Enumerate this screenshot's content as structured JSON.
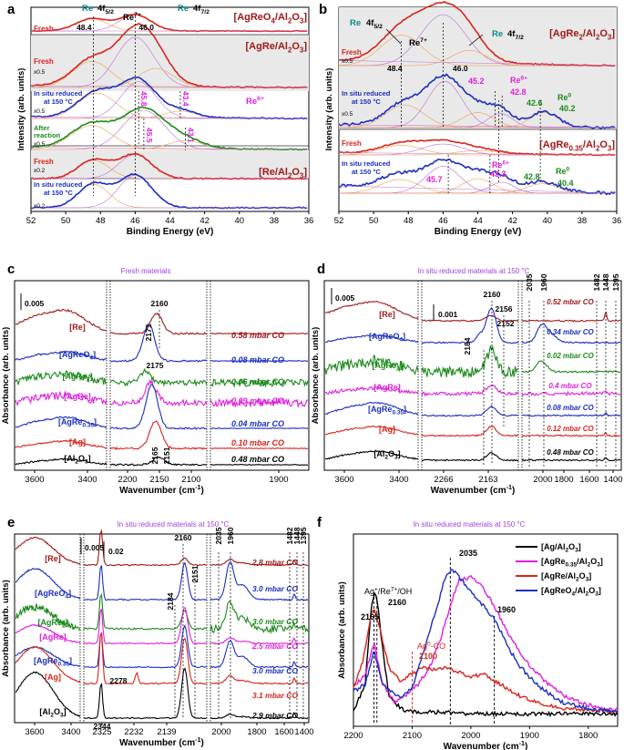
{
  "colors": {
    "red": "#d8241c",
    "darkred": "#a01818",
    "blue": "#1a2fc0",
    "green": "#1a8a1a",
    "magenta": "#e01ee0",
    "black": "#000000",
    "orange": "#f0a050",
    "purple": "#c070d0",
    "band": "#e9e9e9",
    "cyan": "#0a8a8a",
    "violet": "#a040e0"
  },
  "panel_labels": [
    "a",
    "b",
    "c",
    "d",
    "e",
    "f"
  ],
  "chart_data": [
    {
      "id": "a",
      "type": "line",
      "xlabel": "Binding Energy (eV)",
      "ylabel": "Intensity (arb. units)",
      "xlim": [
        52,
        36
      ],
      "xticks": [
        52,
        50,
        48,
        46,
        44,
        42,
        40,
        38,
        36
      ],
      "titles": [
        "[AgReO4/Al2O3]",
        "[AgRe/Al2O3]",
        "[Re/Al2O3]"
      ],
      "header": {
        "re": "Re",
        "f52": "4f5/2",
        "f72": "4f7/2",
        "re7": "Re7+",
        "v48": "48.4",
        "v46": "46.0"
      },
      "series": [
        {
          "name": "Fresh AgReO4",
          "label": "Fresh",
          "scale": "",
          "color": "red",
          "peaks": [
            48.4,
            46.0
          ],
          "values": [
            48.4,
            46.0
          ]
        },
        {
          "name": "Fresh AgRe",
          "label": "Fresh",
          "scale": "x0.5",
          "color": "red",
          "peaks": [
            48.4,
            46.0
          ],
          "values": [
            48.4,
            46.0
          ]
        },
        {
          "name": "In situ reduced AgRe",
          "label": "In situ reduced at 150 °C",
          "scale": "x0.5",
          "color": "blue",
          "peaks": [
            48.4,
            45.8,
            43.4
          ],
          "values": [
            45.8,
            43.4
          ]
        },
        {
          "name": "After reaction AgRe",
          "label": "After reaction",
          "scale": "x0.5",
          "color": "green",
          "peaks": [
            48.4,
            45.5,
            43.1
          ],
          "values": [
            45.5,
            43.1
          ]
        },
        {
          "name": "Fresh Re",
          "label": "Fresh",
          "scale": "x0.2",
          "color": "red",
          "peaks": [
            48.4,
            46.0
          ],
          "values": [
            48.4,
            46.0
          ]
        },
        {
          "name": "In situ reduced Re",
          "label": "In situ reduced at 150 °C",
          "scale": "x0.2",
          "color": "blue",
          "peaks": [
            48.4,
            46.0
          ],
          "values": [
            48.4,
            46.0
          ]
        }
      ],
      "annotations": {
        "re6": "Re6+"
      }
    },
    {
      "id": "b",
      "type": "line",
      "xlabel": "Binding Energy (eV)",
      "ylabel": "Intensity (arb. units)",
      "xlim": [
        52,
        36
      ],
      "xticks": [
        52,
        50,
        48,
        46,
        44,
        42,
        40,
        38,
        36
      ],
      "titles": [
        "[AgRe2/Al2O3]",
        "[AgRe0.35/Al2O3]"
      ],
      "header": {
        "re": "Re",
        "f52": "4f5/2",
        "f72": "4f7/2",
        "re7": "Re7+",
        "v48": "48.4",
        "v46": "46.0"
      },
      "series": [
        {
          "name": "Fresh AgRe2",
          "label": "Fresh",
          "scale": "x0.5",
          "color": "red",
          "values": [
            48.4,
            46.0
          ]
        },
        {
          "name": "In situ reduced AgRe2",
          "label": "In situ reduced at 150 °C",
          "scale": "x0.5",
          "color": "blue",
          "values": [
            45.2,
            42.8,
            42.6,
            40.2
          ]
        },
        {
          "name": "Fresh AgRe0.35",
          "label": "Fresh",
          "scale": "",
          "color": "red",
          "values": []
        },
        {
          "name": "In situ reduced AgRe0.35",
          "label": "In situ reduced at 150 °C",
          "scale": "",
          "color": "blue",
          "values": [
            45.7,
            43.3,
            42.8,
            40.4
          ]
        }
      ],
      "annotations": {
        "re6": "Re6+",
        "re0": "Re0"
      }
    },
    {
      "id": "c",
      "type": "line",
      "title": "Fresh materials",
      "xlabel": "Wavenumber (cm-1)",
      "ylabel": "Absorbance (arb. units)",
      "scalebar": "0.005",
      "xticks_left": [
        3600,
        3400
      ],
      "xticks_mid": [
        2200,
        2150,
        2100
      ],
      "xticks_right": [
        1900
      ],
      "series": [
        "[Re]",
        "[AgReO4]",
        "[AgRe2]",
        "[AgRe]",
        "[AgRe0.35]",
        "[Ag]",
        "[Al2O3]"
      ],
      "pressures": [
        "0.58 mbar CO",
        "0.08 mbar CO",
        "0.06 mbar CO",
        "0.09 mbar CO",
        "0.04 mbar CO",
        "0.10 mbar CO",
        "0.48 mbar CO"
      ],
      "peaks": [
        "2160",
        "2171",
        "2175",
        "2165",
        "2151"
      ]
    },
    {
      "id": "d",
      "type": "line",
      "title": "In situ reduced materials at 150 °C",
      "xlabel": "Wavenumber (cm-1)",
      "ylabel": "Absorbance (arb. units)",
      "scalebar": "0.005",
      "scalebar2": "0.001",
      "xticks_left": [
        3600,
        3400
      ],
      "xticks_mid": [
        2266,
        2163
      ],
      "xticks_right": [
        2000,
        1800,
        1600,
        1400
      ],
      "series": [
        "[Re]",
        "[AgReO4]",
        "[AgRe2]",
        "[AgRe]",
        "[AgRe0.35]",
        "[Ag]",
        "[Al2O3]"
      ],
      "pressures": [
        "0.52 mbar CO",
        "0.34 mbar CO",
        "0.02 mbar CO",
        "0.4 mbar CO",
        "0.08 mbar CO",
        "0.12 mbar CO",
        "0.48 mbar CO"
      ],
      "peaks": [
        "2160",
        "2156",
        "2152",
        "2184",
        "2035",
        "1960",
        "1482",
        "1448",
        "1395"
      ]
    },
    {
      "id": "e",
      "type": "line",
      "title": "In situ reduced materials at 150 °C",
      "xlabel": "Wavenumber (cm-1)",
      "ylabel": "Absorbance (arb. units)",
      "scalebar": "0.005",
      "scalebar2": "0.02",
      "xticks_left": [
        3600,
        3400
      ],
      "xticks_mid": [
        2325,
        2232,
        2139
      ],
      "xticks_right": [
        2000,
        1800,
        1600,
        1400
      ],
      "series": [
        "[Re]",
        "[AgReO4]",
        "[AgRe2]",
        "[AgRe]",
        "[AgRe0.35]",
        "[Ag]",
        "[Al2O3]"
      ],
      "pressures": [
        "2.8 mbar CO",
        "3.0 mbar CO",
        "3.0 mbar CO",
        "2.5 mbar CO",
        "3.0 mbar CO",
        "3.1 mbar CO",
        "2.9 mbar CO"
      ],
      "peaks": [
        "2160",
        "2151",
        "2184",
        "2278",
        "2344",
        "2035",
        "1960",
        "1482",
        "1448",
        "1395"
      ]
    },
    {
      "id": "f",
      "type": "line",
      "title": "In situ reduced materials at 150 °C",
      "xlabel": "Wavenumber (cm-1)",
      "ylabel": "Absorbance (arb. units)",
      "xlim": [
        2200,
        1750
      ],
      "xticks": [
        2200,
        2100,
        2000,
        1900,
        1800
      ],
      "legend": [
        "[Ag/Al2O3]",
        "[AgRe0.35/Al2O3]",
        "[AgRe/Al2O3]",
        "[AgReO4/Al2O3]"
      ],
      "legend_position": "top-right",
      "annotations": {
        "ag_site": "Ag+/Re7+/OH",
        "p2165": "2165",
        "p2160": "2160",
        "ag0": "Ag0-CO",
        "p2100": "2100",
        "p2035": "2035",
        "p1960": "1960"
      },
      "series": [
        {
          "name": "[Ag/Al2O3]",
          "color": "black",
          "x": [
            2200,
            2180,
            2170,
            2165,
            2160,
            2150,
            2140,
            2120,
            2100,
            2050,
            2000,
            1950,
            1900,
            1850,
            1800,
            1750
          ],
          "y": [
            0.05,
            0.2,
            0.64,
            0.72,
            0.7,
            0.4,
            0.14,
            0.06,
            0.04,
            0.04,
            0.03,
            0.03,
            0.03,
            0.03,
            0.03,
            0.03
          ]
        },
        {
          "name": "[AgRe0.35/Al2O3]",
          "color": "magenta",
          "x": [
            2200,
            2180,
            2165,
            2150,
            2130,
            2110,
            2090,
            2070,
            2050,
            2035,
            2020,
            2000,
            1980,
            1960,
            1940,
            1920,
            1900,
            1880,
            1860,
            1840,
            1800,
            1750
          ],
          "y": [
            0.18,
            0.26,
            0.44,
            0.2,
            0.1,
            0.14,
            0.2,
            0.3,
            0.48,
            0.66,
            0.8,
            0.82,
            0.76,
            0.65,
            0.52,
            0.4,
            0.31,
            0.24,
            0.18,
            0.13,
            0.08,
            0.05
          ]
        },
        {
          "name": "[AgRe/Al2O3]",
          "color": "red",
          "x": [
            2200,
            2185,
            2170,
            2165,
            2155,
            2140,
            2120,
            2100,
            2080,
            2060,
            2040,
            2020,
            2000,
            1980,
            1960,
            1940,
            1920,
            1900,
            1880,
            1860,
            1840,
            1800,
            1750
          ],
          "y": [
            0.18,
            0.32,
            0.6,
            0.64,
            0.52,
            0.3,
            0.22,
            0.26,
            0.3,
            0.28,
            0.3,
            0.27,
            0.24,
            0.26,
            0.22,
            0.18,
            0.14,
            0.11,
            0.09,
            0.07,
            0.06,
            0.05,
            0.04
          ]
        },
        {
          "name": "[AgReO4/Al2O3]",
          "color": "blue",
          "x": [
            2200,
            2180,
            2165,
            2150,
            2120,
            2100,
            2080,
            2060,
            2045,
            2035,
            2025,
            2010,
            1990,
            1970,
            1960,
            1940,
            1920,
            1900,
            1880,
            1860,
            1840,
            1800,
            1750
          ],
          "y": [
            0.16,
            0.2,
            0.4,
            0.2,
            0.12,
            0.18,
            0.4,
            0.62,
            0.8,
            0.86,
            0.84,
            0.78,
            0.7,
            0.62,
            0.58,
            0.44,
            0.32,
            0.24,
            0.18,
            0.13,
            0.09,
            0.06,
            0.04
          ]
        }
      ]
    }
  ]
}
